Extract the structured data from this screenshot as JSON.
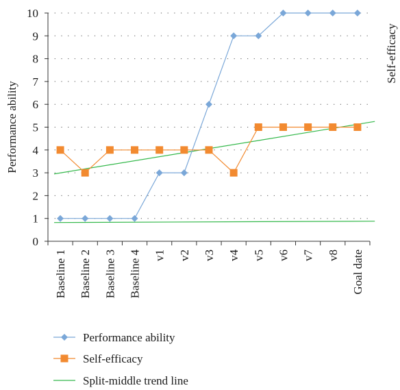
{
  "chart_data": {
    "type": "line",
    "ylabel": "Performance ability",
    "ylabel_right": "Self-efficacy",
    "categories": [
      "Baseline 1",
      "Baseline 2",
      "Baseline 3",
      "Baseline 4",
      "v1",
      "v2",
      "v3",
      "v4",
      "v5",
      "v6",
      "v7",
      "v8",
      "Goal date"
    ],
    "ylim": [
      0,
      10
    ],
    "yticks": [
      0,
      1,
      2,
      3,
      4,
      5,
      6,
      7,
      8,
      9,
      10
    ],
    "grid": "horizontal dotted",
    "legend_position": "bottom",
    "series": [
      {
        "name": "Performance ability",
        "marker": "diamond",
        "color": "#7aa7d8",
        "values": [
          1,
          1,
          1,
          1,
          3,
          3,
          6,
          9,
          9,
          10,
          10,
          10,
          10
        ]
      },
      {
        "name": "Self-efficacy",
        "marker": "square",
        "color": "#f28a30",
        "values": [
          4,
          3,
          4,
          4,
          4,
          4,
          4,
          3,
          5,
          5,
          5,
          5,
          5
        ]
      }
    ],
    "trend_lines": [
      {
        "name": "Split-middle trend line",
        "color": "#33b84a",
        "segments": [
          {
            "x_start": -0.25,
            "y_start": 0.82,
            "x_end": 12.7,
            "y_end": 0.88
          },
          {
            "x_start": -0.25,
            "y_start": 2.95,
            "x_end": 12.7,
            "y_end": 5.25
          }
        ]
      }
    ]
  }
}
